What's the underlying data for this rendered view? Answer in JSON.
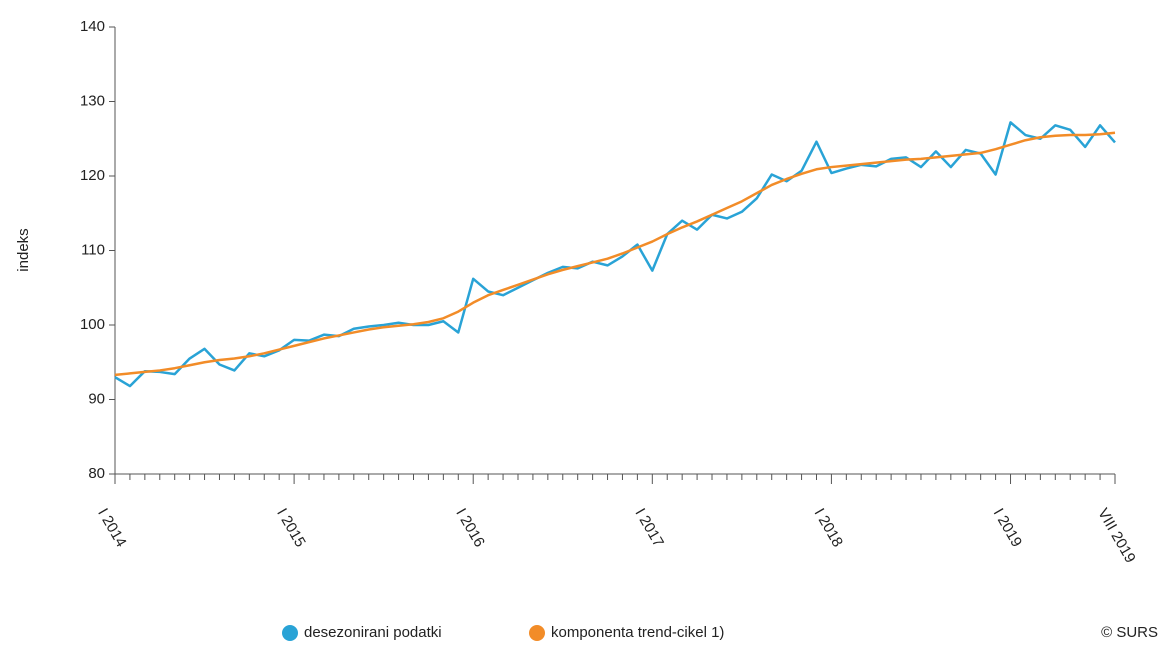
{
  "chart_data": {
    "type": "line",
    "y_label": "indeks",
    "categories": [
      "I 2014",
      null,
      null,
      null,
      null,
      null,
      null,
      null,
      null,
      null,
      null,
      null,
      "I 2015",
      null,
      null,
      null,
      null,
      null,
      null,
      null,
      null,
      null,
      null,
      null,
      "I 2016",
      null,
      null,
      null,
      null,
      null,
      null,
      null,
      null,
      null,
      null,
      null,
      "I 2017",
      null,
      null,
      null,
      null,
      null,
      null,
      null,
      null,
      null,
      null,
      null,
      "I 2018",
      null,
      null,
      null,
      null,
      null,
      null,
      null,
      null,
      null,
      null,
      null,
      "I 2019",
      null,
      null,
      null,
      null,
      null,
      null,
      "VIII 2019"
    ],
    "series": [
      {
        "name": "desezonirani podatki",
        "color": "#29a3d6",
        "values": [
          93.0,
          91.8,
          93.8,
          93.7,
          93.4,
          95.5,
          96.8,
          94.7,
          93.9,
          96.2,
          95.8,
          96.6,
          98.0,
          97.9,
          98.7,
          98.5,
          99.5,
          99.8,
          100.0,
          100.3,
          100.0,
          100.0,
          100.5,
          99.0,
          106.2,
          104.5,
          104.0,
          105.0,
          106.0,
          107.0,
          107.8,
          107.6,
          108.5,
          108.0,
          109.2,
          110.8,
          107.3,
          112.2,
          114.0,
          112.8,
          114.8,
          114.3,
          115.2,
          117.0,
          120.2,
          119.3,
          120.7,
          124.6,
          120.4,
          121.0,
          121.5,
          121.3,
          122.3,
          122.5,
          121.2,
          123.3,
          121.2,
          123.5,
          123.0,
          120.2,
          127.2,
          125.5,
          125.0,
          126.8,
          126.2,
          123.9,
          126.8,
          124.5
        ]
      },
      {
        "name": "komponenta trend-cikel 1)",
        "color": "#f28c28",
        "values": [
          93.3,
          93.5,
          93.7,
          93.9,
          94.2,
          94.6,
          95.0,
          95.3,
          95.5,
          95.8,
          96.2,
          96.7,
          97.2,
          97.7,
          98.2,
          98.6,
          99.0,
          99.4,
          99.7,
          99.9,
          100.1,
          100.4,
          100.9,
          101.8,
          103.0,
          104.0,
          104.7,
          105.4,
          106.1,
          106.8,
          107.4,
          107.9,
          108.4,
          108.9,
          109.6,
          110.4,
          111.2,
          112.2,
          113.1,
          113.9,
          114.8,
          115.7,
          116.6,
          117.7,
          118.8,
          119.6,
          120.3,
          120.9,
          121.2,
          121.4,
          121.6,
          121.8,
          122.0,
          122.2,
          122.3,
          122.5,
          122.7,
          122.9,
          123.1,
          123.6,
          124.2,
          124.8,
          125.2,
          125.4,
          125.5,
          125.5,
          125.6,
          125.8
        ]
      }
    ],
    "ylim": [
      80,
      140
    ],
    "yticks": [
      80,
      90,
      100,
      110,
      120,
      130,
      140
    ],
    "grid": false,
    "legend": "bottom",
    "source": "© SURS"
  }
}
